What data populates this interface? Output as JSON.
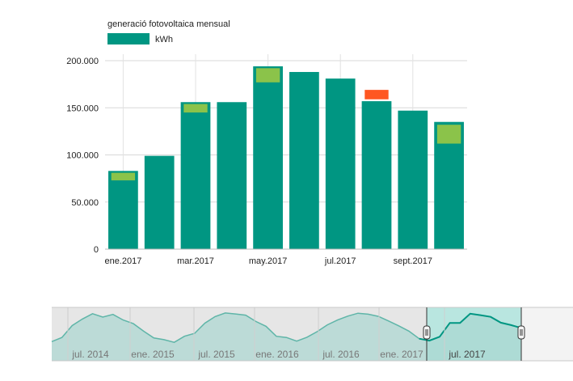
{
  "chart_data": {
    "type": "bar",
    "title": "generació fotovoltaica mensual",
    "legend": [
      {
        "name": "kWh",
        "color": "#009682"
      }
    ],
    "legend_position": "top-left",
    "grid": true,
    "ylim": [
      0,
      200000
    ],
    "y_ticks": [
      "0",
      "50.000",
      "100.000",
      "150.000",
      "200.000"
    ],
    "x_tick_labels": [
      "ene.2017",
      "mar.2017",
      "may.2017",
      "jul.2017",
      "sept.2017"
    ],
    "categories": [
      "ene.2017",
      "feb.2017",
      "mar.2017",
      "abr.2017",
      "may.2017",
      "jun.2017",
      "jul.2017",
      "ago.2017",
      "sept.2017",
      "oct.2017"
    ],
    "series": [
      {
        "name": "kWh",
        "color": "#009682",
        "values": [
          83000,
          99000,
          156000,
          156000,
          194000,
          188000,
          181000,
          157000,
          147000,
          135000
        ]
      }
    ],
    "expected_markers": [
      {
        "category": "ene.2017",
        "low": 73000,
        "high": 81000,
        "color": "#8bc34a"
      },
      {
        "category": "mar.2017",
        "low": 145000,
        "high": 154000,
        "color": "#8bc34a"
      },
      {
        "category": "may.2017",
        "low": 177000,
        "high": 192000,
        "color": "#8bc34a"
      },
      {
        "category": "ago.2017",
        "low": 159000,
        "high": 169000,
        "color": "#ff5722"
      },
      {
        "category": "oct.2017",
        "low": 112000,
        "high": 132000,
        "color": "#8bc34a"
      }
    ],
    "navigator": {
      "tick_labels": [
        "jul. 2014",
        "ene. 2015",
        "jul. 2015",
        "ene. 2016",
        "jul. 2016",
        "ene. 2017",
        "jul. 2017"
      ],
      "values": [
        79,
        96,
        145,
        172,
        194,
        180,
        191,
        168,
        153,
        122,
        94,
        87,
        76,
        101,
        113,
        155,
        182,
        197,
        193,
        188,
        162,
        142,
        101,
        96,
        81,
        97,
        120,
        148,
        168,
        184,
        196,
        192,
        183,
        164,
        144,
        122,
        91,
        83,
        99,
        156,
        156,
        194,
        188,
        181,
        157,
        147,
        135
      ]
    }
  }
}
